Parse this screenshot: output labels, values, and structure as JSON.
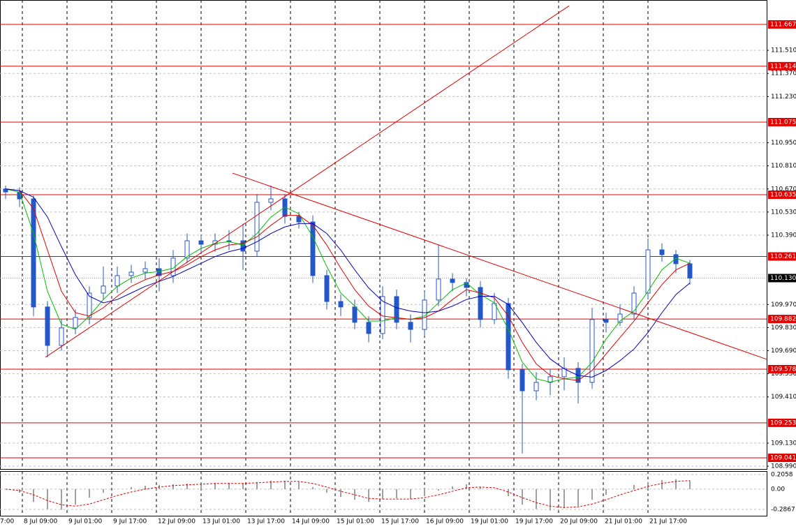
{
  "chart_data": {
    "type": "candlestick",
    "xlim": [
      0,
      274.5
    ],
    "xticks": [
      {
        "value": -8,
        "label": "7:00"
      },
      {
        "value": 8,
        "label": "8 Jul 09:00"
      },
      {
        "value": 24,
        "label": "9 Jul 01:00"
      },
      {
        "value": 40,
        "label": "9 Jul 17:00"
      },
      {
        "value": 56,
        "label": "12 Jul 09:00"
      },
      {
        "value": 72,
        "label": "13 Jul 01:00"
      },
      {
        "value": 88,
        "label": "13 Jul 17:00"
      },
      {
        "value": 104,
        "label": "14 Jul 09:00"
      },
      {
        "value": 120,
        "label": "15 Jul 01:00"
      },
      {
        "value": 136,
        "label": "15 Jul 17:00"
      },
      {
        "value": 152,
        "label": "16 Jul 09:00"
      },
      {
        "value": 168,
        "label": "19 Jul 01:00"
      },
      {
        "value": 184,
        "label": "19 Jul 17:00"
      },
      {
        "value": 200,
        "label": "20 Jul 09:00"
      },
      {
        "value": 216,
        "label": "21 Jul 01:00"
      },
      {
        "value": 232,
        "label": "21 Jul 17:00"
      }
    ],
    "ylim": [
      108.969,
      111.815
    ],
    "yticks": [
      {
        "value": 111.51,
        "label": "111.510"
      },
      {
        "value": 111.37,
        "label": "111.370"
      },
      {
        "value": 111.23,
        "label": "111.230"
      },
      {
        "value": 110.95,
        "label": "110.950"
      },
      {
        "value": 110.81,
        "label": "110.810"
      },
      {
        "value": 110.67,
        "label": "110.670"
      },
      {
        "value": 110.53,
        "label": "110.530"
      },
      {
        "value": 110.39,
        "label": "110.390"
      },
      {
        "value": 109.97,
        "label": "109.970"
      },
      {
        "value": 109.83,
        "label": "109.830"
      },
      {
        "value": 109.69,
        "label": "109.690"
      },
      {
        "value": 109.55,
        "label": "109.550"
      },
      {
        "value": 109.41,
        "label": "109.410"
      },
      {
        "value": 109.13,
        "label": "109.130"
      },
      {
        "value": 108.99,
        "label": "108.990"
      }
    ],
    "grid": true,
    "levels": [
      111.667,
      111.414,
      111.075,
      110.635,
      110.261,
      109.882,
      109.578,
      109.253,
      109.041
    ],
    "level_color": "#e00000",
    "current_price": {
      "value": 110.13,
      "label": "110.130"
    },
    "candles": {
      "color": "#2457c9",
      "x": [
        2,
        7,
        12,
        17,
        22,
        27,
        32,
        37,
        42,
        47,
        52,
        57,
        62,
        67,
        72,
        77,
        82,
        87,
        92,
        97,
        102,
        107,
        112,
        117,
        122,
        127,
        132,
        137,
        142,
        147,
        152,
        157,
        162,
        167,
        172,
        177,
        182,
        187,
        192,
        197,
        202,
        207,
        212,
        217,
        222,
        227,
        232,
        237,
        242,
        247
      ],
      "open": [
        110.67,
        110.652,
        110.61,
        109.955,
        109.722,
        109.828,
        109.891,
        110.039,
        110.082,
        110.145,
        110.166,
        110.187,
        110.145,
        110.251,
        110.356,
        110.335,
        110.356,
        110.356,
        110.293,
        110.589,
        110.61,
        110.504,
        110.47,
        110.145,
        109.988,
        109.955,
        109.862,
        109.794,
        110.018,
        109.862,
        109.819,
        109.997,
        110.124,
        110.103,
        110.073,
        109.879,
        109.976,
        109.574,
        109.447,
        109.498,
        109.532,
        109.583,
        109.498,
        109.879,
        109.862,
        109.912,
        110.039,
        110.301,
        110.272,
        110.217
      ],
      "high": [
        110.69,
        110.68,
        110.63,
        109.99,
        109.88,
        109.94,
        110.08,
        110.2,
        110.2,
        110.21,
        110.23,
        110.25,
        110.3,
        110.4,
        110.39,
        110.4,
        110.42,
        110.46,
        110.64,
        110.69,
        110.64,
        110.53,
        110.51,
        110.18,
        110.03,
        110.0,
        109.9,
        110.08,
        110.06,
        109.91,
        110.05,
        110.33,
        110.16,
        110.13,
        110.11,
        110.04,
        110.01,
        109.61,
        109.56,
        109.58,
        109.65,
        109.62,
        109.95,
        109.92,
        109.97,
        110.08,
        110.37,
        110.34,
        110.3,
        110.24
      ],
      "low": [
        110.61,
        110.56,
        109.9,
        109.65,
        109.69,
        109.79,
        109.85,
        110.0,
        110.04,
        110.1,
        110.12,
        110.05,
        110.1,
        110.22,
        110.28,
        110.29,
        110.3,
        110.18,
        110.26,
        110.54,
        110.46,
        110.43,
        110.1,
        109.94,
        109.9,
        109.82,
        109.74,
        109.76,
        109.82,
        109.74,
        109.78,
        109.96,
        110.05,
        110.02,
        109.83,
        109.85,
        109.52,
        109.067,
        109.39,
        109.42,
        109.45,
        109.37,
        109.46,
        109.8,
        109.84,
        109.88,
        110.0,
        110.23,
        110.16,
        110.09
      ],
      "close": [
        110.652,
        110.61,
        109.955,
        109.722,
        109.828,
        109.891,
        110.039,
        110.082,
        110.145,
        110.166,
        110.187,
        110.145,
        110.251,
        110.356,
        110.335,
        110.356,
        110.356,
        110.293,
        110.589,
        110.61,
        110.504,
        110.47,
        110.145,
        109.988,
        109.955,
        109.862,
        109.794,
        110.018,
        109.862,
        109.819,
        109.997,
        110.124,
        110.103,
        110.073,
        109.879,
        109.976,
        109.574,
        109.447,
        109.498,
        109.532,
        109.583,
        109.498,
        109.879,
        109.862,
        109.912,
        110.039,
        110.301,
        110.272,
        110.217,
        110.13
      ]
    },
    "series": [
      {
        "color": "#00c000",
        "values": [
          110.67,
          110.65,
          110.4,
          110.05,
          109.85,
          109.82,
          109.9,
          110.0,
          110.08,
          110.13,
          110.16,
          110.17,
          110.19,
          110.26,
          110.31,
          110.34,
          110.35,
          110.33,
          110.4,
          110.5,
          110.56,
          110.52,
          110.38,
          110.2,
          110.04,
          109.96,
          109.87,
          109.87,
          109.89,
          109.88,
          109.9,
          109.98,
          110.06,
          110.1,
          110.03,
          109.98,
          109.82,
          109.62,
          109.52,
          109.5,
          109.52,
          109.53,
          109.62,
          109.76,
          109.87,
          109.93,
          110.05,
          110.18,
          110.25,
          110.22
        ]
      },
      {
        "color": "#e00000",
        "values": [
          110.67,
          110.66,
          110.55,
          110.3,
          110.05,
          109.92,
          109.9,
          109.95,
          110.02,
          110.08,
          110.12,
          110.15,
          110.17,
          110.21,
          110.26,
          110.3,
          110.33,
          110.34,
          110.38,
          110.45,
          110.51,
          110.51,
          110.45,
          110.33,
          110.19,
          110.06,
          109.96,
          109.9,
          109.89,
          109.88,
          109.89,
          109.93,
          110.0,
          110.06,
          110.04,
          110.01,
          109.9,
          109.74,
          109.61,
          109.54,
          109.52,
          109.51,
          109.57,
          109.67,
          109.77,
          109.87,
          109.98,
          110.09,
          110.18,
          110.22
        ]
      },
      {
        "color": "#0000c0",
        "values": [
          110.67,
          110.66,
          110.62,
          110.5,
          110.32,
          110.15,
          110.02,
          109.98,
          110.0,
          110.04,
          110.08,
          110.11,
          110.14,
          110.18,
          110.22,
          110.26,
          110.29,
          110.31,
          110.35,
          110.4,
          110.44,
          110.46,
          110.46,
          110.4,
          110.3,
          110.18,
          110.07,
          109.99,
          109.95,
          109.93,
          109.92,
          109.93,
          109.96,
          110.0,
          110.02,
          110.02,
          109.97,
          109.86,
          109.74,
          109.64,
          109.58,
          109.54,
          109.53,
          109.57,
          109.63,
          109.7,
          109.8,
          109.92,
          110.03,
          110.1
        ]
      }
    ],
    "trendlines": [
      {
        "color": "#e00000",
        "x": [
          16.25,
          203.75
        ],
        "y": [
          109.65,
          111.78
        ]
      },
      {
        "color": "#e00000",
        "x": [
          83.25,
          274.5
        ],
        "y": [
          110.766,
          109.638
        ]
      }
    ],
    "oscillator": {
      "ylim": [
        -0.385,
        0.255
      ],
      "yticks": [
        0.2058,
        {
          "value": 0,
          "label": "0.00"
        },
        -0.2867
      ],
      "histogram_color": "#a0a0a0",
      "signal_color": "#e00000",
      "histogram": [
        0.0,
        -0.05,
        -0.18,
        -0.28,
        -0.29,
        -0.22,
        -0.12,
        -0.05,
        0.0,
        0.03,
        0.05,
        0.06,
        0.07,
        0.08,
        0.09,
        0.09,
        0.09,
        0.08,
        0.1,
        0.12,
        0.12,
        0.1,
        0.03,
        -0.05,
        -0.11,
        -0.15,
        -0.18,
        -0.14,
        -0.13,
        -0.14,
        -0.1,
        -0.02,
        0.04,
        0.07,
        0.03,
        0.0,
        -0.1,
        -0.22,
        -0.28,
        -0.3,
        -0.27,
        -0.24,
        -0.15,
        -0.08,
        0.0,
        0.06,
        0.1,
        0.13,
        0.14,
        0.12
      ],
      "signal": [
        0.0,
        -0.02,
        -0.08,
        -0.16,
        -0.22,
        -0.24,
        -0.21,
        -0.15,
        -0.09,
        -0.04,
        0.0,
        0.03,
        0.05,
        0.06,
        0.07,
        0.08,
        0.08,
        0.08,
        0.09,
        0.1,
        0.11,
        0.11,
        0.08,
        0.03,
        -0.03,
        -0.08,
        -0.13,
        -0.14,
        -0.14,
        -0.14,
        -0.12,
        -0.08,
        -0.03,
        0.02,
        0.03,
        0.02,
        -0.04,
        -0.12,
        -0.19,
        -0.24,
        -0.26,
        -0.25,
        -0.21,
        -0.15,
        -0.08,
        -0.02,
        0.04,
        0.08,
        0.11,
        0.12
      ]
    }
  }
}
